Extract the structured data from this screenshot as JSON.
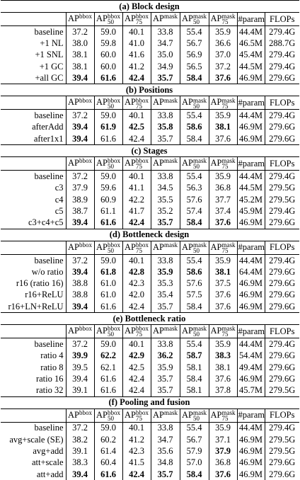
{
  "header": [
    {
      "text": "AP",
      "sup": "bbox"
    },
    {
      "text": "AP",
      "sup": "bbox",
      "sub": "50"
    },
    {
      "text": "AP",
      "sup": "bbox",
      "sub": "75"
    },
    {
      "text": "AP",
      "sup": "mask"
    },
    {
      "text": "AP",
      "sup": "mask",
      "sub": "50"
    },
    {
      "text": "AP",
      "sup": "mask",
      "sub": "75"
    },
    {
      "text": "#param"
    },
    {
      "text": "FLOPs"
    }
  ],
  "sections": [
    {
      "title": "(a) Block design",
      "rows": [
        [
          "baseline",
          "37.2",
          "59.0",
          "40.1",
          "33.8",
          "55.4",
          "35.9",
          "44.4M",
          "279.4G"
        ],
        [
          "+1 NL",
          "38.0",
          "59.8",
          "41.0",
          "34.7",
          "56.7",
          "36.6",
          "46.5M",
          "288.7G"
        ],
        [
          "+1 SNL",
          "38.1",
          "60.0",
          "41.6",
          "35.0",
          "56.9",
          "37.0",
          "45.4M",
          "279.4G"
        ],
        [
          "+1 GC",
          "38.1",
          "60.0",
          "41.2",
          "34.9",
          "56.5",
          "37.2",
          "44.5M",
          "279.4G"
        ],
        [
          "+all GC",
          "39.4",
          "61.6",
          "42.4",
          "35.7",
          "58.4",
          "37.6",
          "46.9M",
          "279.6G"
        ]
      ],
      "bold": [
        [],
        [],
        [],
        [],
        [
          1,
          2,
          3,
          4,
          5,
          6
        ]
      ]
    },
    {
      "title": "(b) Positions",
      "rows": [
        [
          "baseline",
          "37.2",
          "59.0",
          "40.1",
          "33.8",
          "55.4",
          "35.9",
          "44.4M",
          "279.4G"
        ],
        [
          "afterAdd",
          "39.4",
          "61.9",
          "42.5",
          "35.8",
          "58.6",
          "38.1",
          "46.9M",
          "279.6G"
        ],
        [
          "after1x1",
          "39.4",
          "61.6",
          "42.4",
          "35.7",
          "58.4",
          "37.6",
          "46.9M",
          "279.6G"
        ]
      ],
      "bold": [
        [],
        [
          1,
          2,
          3,
          4,
          5,
          6
        ],
        [
          1
        ]
      ]
    },
    {
      "title": "(c) Stages",
      "rows": [
        [
          "baseline",
          "37.2",
          "59.0",
          "40.1",
          "33.8",
          "55.4",
          "35.9",
          "44.4M",
          "279.4G"
        ],
        [
          "c3",
          "37.9",
          "59.6",
          "41.1",
          "34.5",
          "56.3",
          "36.8",
          "44.5M",
          "279.5G"
        ],
        [
          "c4",
          "38.9",
          "60.9",
          "42.2",
          "35.5",
          "57.6",
          "37.7",
          "45.2M",
          "279.5G"
        ],
        [
          "c5",
          "38.7",
          "61.1",
          "41.7",
          "35.2",
          "57.4",
          "37.4",
          "45.9M",
          "279.4G"
        ],
        [
          "c3+c4+c5",
          "39.4",
          "61.6",
          "42.4",
          "35.7",
          "58.4",
          "37.6",
          "46.9M",
          "279.6G"
        ]
      ],
      "bold": [
        [],
        [],
        [],
        [],
        [
          1,
          2,
          3,
          4,
          5,
          6
        ]
      ]
    },
    {
      "title": "(d) Bottleneck design",
      "rows": [
        [
          "baseline",
          "37.2",
          "59.0",
          "40.1",
          "33.8",
          "55.4",
          "35.9",
          "44.4M",
          "279.4G"
        ],
        [
          "w/o ratio",
          "39.4",
          "61.8",
          "42.8",
          "35.9",
          "58.6",
          "38.1",
          "64.4M",
          "279.6G"
        ],
        [
          "r16 (ratio 16)",
          "38.8",
          "61.0",
          "42.3",
          "35.3",
          "57.6",
          "37.5",
          "46.9M",
          "279.6G"
        ],
        [
          "r16+ReLU",
          "38.8",
          "61.0",
          "42.0",
          "35.4",
          "57.5",
          "37.6",
          "46.9M",
          "279.6G"
        ],
        [
          "r16+LN+ReLU",
          "39.4",
          "61.6",
          "42.4",
          "35.7",
          "58.4",
          "37.6",
          "46.9M",
          "279.6G"
        ]
      ],
      "bold": [
        [],
        [
          1,
          2,
          3,
          4,
          5,
          6
        ],
        [],
        [],
        [
          1
        ]
      ]
    },
    {
      "title": "(e) Bottleneck ratio",
      "rows": [
        [
          "baseline",
          "37.2",
          "59.0",
          "40.1",
          "33.8",
          "55.4",
          "35.9",
          "44.4M",
          "279.4G"
        ],
        [
          "ratio 4",
          "39.9",
          "62.2",
          "42.9",
          "36.2",
          "58.7",
          "38.3",
          "54.4M",
          "279.6G"
        ],
        [
          "ratio 8",
          "39.5",
          "62.1",
          "42.5",
          "35.9",
          "58.1",
          "38.1",
          "49.4M",
          "279.6G"
        ],
        [
          "ratio 16",
          "39.4",
          "61.6",
          "42.4",
          "35.7",
          "58.4",
          "37.6",
          "46.9M",
          "279.6G"
        ],
        [
          "ratio 32",
          "39.1",
          "61.6",
          "42.4",
          "35.7",
          "58.1",
          "37.8",
          "45.7M",
          "279.5G"
        ]
      ],
      "bold": [
        [],
        [
          1,
          2,
          3,
          4,
          5,
          6
        ],
        [],
        [],
        []
      ]
    },
    {
      "title": "(f) Pooling and fusion",
      "rows": [
        [
          "baseline",
          "37.2",
          "59.0",
          "40.1",
          "33.8",
          "55.4",
          "35.9",
          "44.4M",
          "279.4G"
        ],
        [
          "avg+scale (SE)",
          "38.2",
          "60.2",
          "41.2",
          "34.7",
          "56.7",
          "37.1",
          "46.9M",
          "279.5G"
        ],
        [
          "avg+add",
          "39.1",
          "61.4",
          "42.3",
          "35.6",
          "57.9",
          "37.9",
          "46.9M",
          "279.5G"
        ],
        [
          "att+scale",
          "38.3",
          "60.4",
          "41.5",
          "34.8",
          "57.0",
          "36.8",
          "46.9M",
          "279.6G"
        ],
        [
          "att+add",
          "39.4",
          "61.6",
          "42.4",
          "35.7",
          "58.4",
          "37.6",
          "46.9M",
          "279.6G"
        ]
      ],
      "bold": [
        [],
        [],
        [
          6
        ],
        [],
        [
          1,
          2,
          3,
          4,
          5,
          6
        ]
      ]
    }
  ]
}
